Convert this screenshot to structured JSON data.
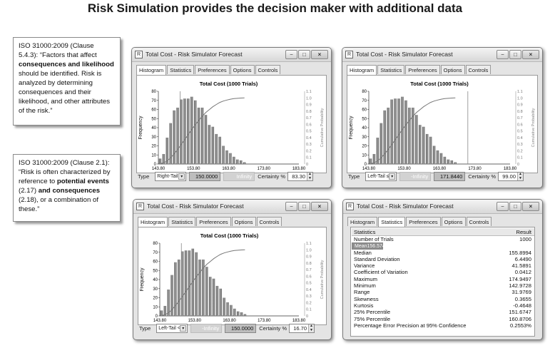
{
  "title": "Risk Simulation provides the decision maker with additional data",
  "notes": [
    {
      "pre": "ISO 31000:2009 (Clause 5.4.3): “Factors that affect ",
      "bold1": "consequences and likelihood",
      "mid": " should be identified. Risk is analyzed by determining consequences and their likelihood, and other attributes of the risk.”",
      "bold2": "",
      "post": ""
    },
    {
      "pre": "ISO 31000:2009 (Clause 2.1): “Risk is often characterized by reference to ",
      "bold1": "potential events",
      "mid": " (2.17) ",
      "bold2": "and consequences",
      "post": " (2.18), or a combination of these.”"
    }
  ],
  "window_title": "Total Cost - Risk Simulator Forecast",
  "tabs": [
    "Histogram",
    "Statistics",
    "Preferences",
    "Options",
    "Controls"
  ],
  "type_label": "Type",
  "certainty_label": "Certainty %",
  "windows": [
    {
      "active_tab": 0,
      "type": "Right-Tail ≥",
      "field1": "150.0000",
      "field2": "Infinity",
      "field1_gray": false,
      "field2_gray": true,
      "certainty": "83.30"
    },
    {
      "active_tab": 0,
      "type": "Left-Tail ≤",
      "field1": "-Infinity",
      "field2": "171.8440",
      "field1_gray": true,
      "field2_gray": false,
      "certainty": "99.00"
    },
    {
      "active_tab": 0,
      "type": "Left-Tail <",
      "field1": "-Infinity",
      "field2": "150.0000",
      "field1_gray": true,
      "field2_gray": false,
      "certainty": "16.70"
    },
    {
      "active_tab": 1
    }
  ],
  "window_controls": {
    "minimize": "−",
    "maximize": "□",
    "close": "×"
  },
  "chart_data": {
    "type": "bar",
    "title": "Total Cost (1000 Trials)",
    "ylabel": "Frequency",
    "y2label": "Cumulative Probability",
    "ylim": [
      0,
      80
    ],
    "y_ticks": [
      "0",
      "10",
      "20",
      "30",
      "40",
      "50",
      "60",
      "70",
      "80"
    ],
    "y2_ticks": [
      "0",
      "0.1",
      "0.2",
      "0.3",
      "0.4",
      "0.5",
      "0.6",
      "0.7",
      "0.8",
      "0.9",
      "1.0",
      "1.1"
    ],
    "x_ticks": [
      "143.80",
      "153.80",
      "163.80",
      "173.80",
      "183.80"
    ],
    "xlim": [
      143.8,
      183.8
    ],
    "bin_start": 144.3,
    "bin_width": 1.0,
    "values": [
      6,
      11,
      29,
      45,
      59,
      62,
      71,
      72,
      72,
      74,
      70,
      62,
      62,
      54,
      43,
      41,
      33,
      30,
      20,
      15,
      12,
      8,
      5,
      4,
      2
    ],
    "lines": [
      150.0,
      171.844,
      150.0
    ]
  },
  "stats": {
    "header": [
      "Statistics",
      "Result"
    ],
    "rows": [
      [
        "Number of Trials",
        "1000"
      ],
      [
        "Mean",
        "156.5740"
      ],
      [
        "Median",
        "155.8994"
      ],
      [
        "Standard Deviation",
        "6.4490"
      ],
      [
        "Variance",
        "41.5891"
      ],
      [
        "Coefficient of Variation",
        "0.0412"
      ],
      [
        "Maximum",
        "174.9497"
      ],
      [
        "Minimum",
        "142.9728"
      ],
      [
        "Range",
        "31.9769"
      ],
      [
        "Skewness",
        "0.3655"
      ],
      [
        "Kurtosis",
        "-0.4648"
      ],
      [
        "25% Percentile",
        "151.6747"
      ],
      [
        "75% Percentile",
        "160.8706"
      ],
      [
        "Percentage Error Precision at 95% Confidence",
        "0.2553%"
      ]
    ]
  }
}
